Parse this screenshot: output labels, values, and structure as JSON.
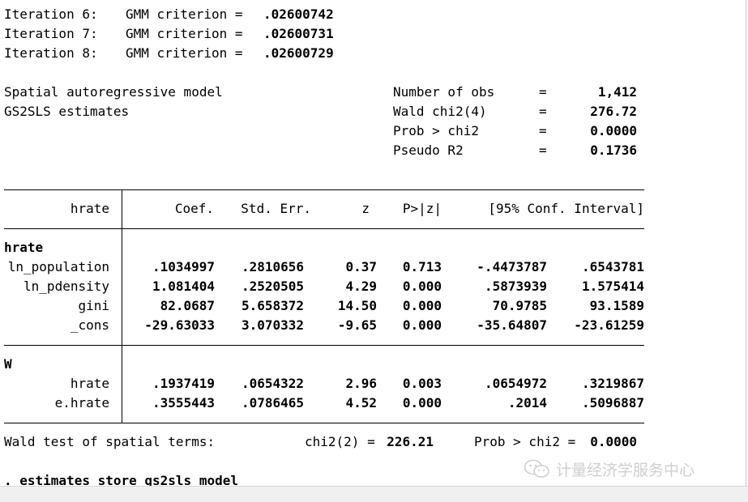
{
  "iterations": [
    {
      "label": "Iteration 6:",
      "criterion_label": "GMM criterion =",
      "value": ".02600742"
    },
    {
      "label": "Iteration 7:",
      "criterion_label": "GMM criterion =",
      "value": ".02600731"
    },
    {
      "label": "Iteration 8:",
      "criterion_label": "GMM criterion =",
      "value": ".02600729"
    }
  ],
  "model": {
    "title": "Spatial autoregressive model",
    "estimator": "GS2SLS estimates",
    "stats": [
      {
        "label": "Number of obs",
        "eq": "=",
        "value": "1,412"
      },
      {
        "label": "Wald chi2(4)",
        "eq": "=",
        "value": "276.72"
      },
      {
        "label": "Prob > chi2",
        "eq": "=",
        "value": "0.0000"
      },
      {
        "label": "Pseudo R2",
        "eq": "=",
        "value": "0.1736"
      }
    ]
  },
  "table": {
    "header": {
      "depvar": "hrate",
      "coef": "Coef.",
      "se": "Std. Err.",
      "z": "z",
      "p": "P>|z|",
      "ci": "[95% Conf. Interval]"
    },
    "eq1": {
      "name": "hrate",
      "rows": [
        {
          "var": "ln_population",
          "coef": ".1034997",
          "se": ".2810656",
          "z": "0.37",
          "p": "0.713",
          "lo": "-.4473787",
          "hi": ".6543781"
        },
        {
          "var": "ln_pdensity",
          "coef": "1.081404",
          "se": ".2520505",
          "z": "4.29",
          "p": "0.000",
          "lo": ".5873939",
          "hi": "1.575414"
        },
        {
          "var": "gini",
          "coef": "82.0687",
          "se": "5.658372",
          "z": "14.50",
          "p": "0.000",
          "lo": "70.9785",
          "hi": "93.1589"
        },
        {
          "var": "_cons",
          "coef": "-29.63033",
          "se": "3.070332",
          "z": "-9.65",
          "p": "0.000",
          "lo": "-35.64807",
          "hi": "-23.61259"
        }
      ]
    },
    "eq2": {
      "name": "W",
      "rows": [
        {
          "var": "hrate",
          "coef": ".1937419",
          "se": ".0654322",
          "z": "2.96",
          "p": "0.003",
          "lo": ".0654972",
          "hi": ".3219867"
        },
        {
          "var": "e.hrate",
          "coef": ".3555443",
          "se": ".0786465",
          "z": "4.52",
          "p": "0.000",
          "lo": ".2014",
          "hi": ".5096887"
        }
      ]
    }
  },
  "wald": {
    "label": "Wald test of spatial terms:",
    "chi_label": "chi2(2) =",
    "chi_value": "226.21",
    "prob_label": "Prob > chi2 =",
    "prob_value": "0.0000"
  },
  "command": ". estimates store gs2sls_model",
  "watermark": {
    "text": "计量经济学服务中心",
    "icon": "wechat-icon"
  }
}
